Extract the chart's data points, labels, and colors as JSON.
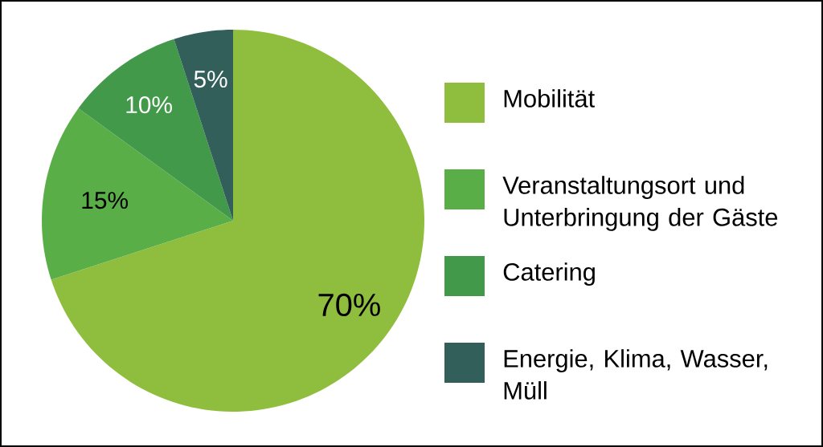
{
  "chart_data": {
    "type": "pie",
    "categories": [
      "Mobilität",
      "Veranstaltungsort und Unterbringung der Gäste",
      "Catering",
      "Energie, Klima, Wasser, Müll"
    ],
    "values": [
      70,
      15,
      10,
      5
    ],
    "colors": [
      "#8fbe3e",
      "#5aae47",
      "#43994a",
      "#335f5b"
    ],
    "value_labels": [
      "70%",
      "15%",
      "10%",
      "5%"
    ],
    "legend": "right"
  }
}
